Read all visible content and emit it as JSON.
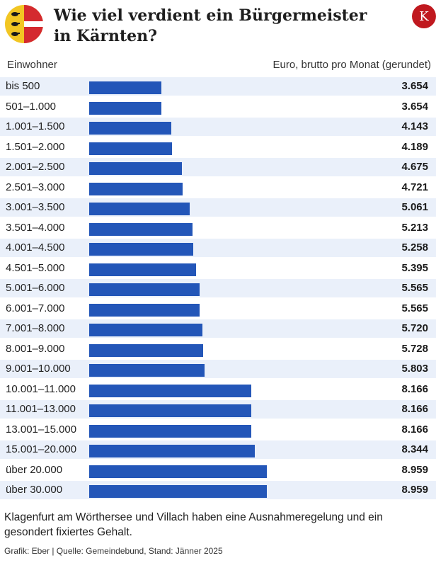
{
  "header": {
    "title_line1": "Wie viel verdient ein Bürgermeister",
    "title_line2": "in Kärnten?",
    "logo_letter": "K",
    "crest_icon": "carinthia-coat-of-arms-icon",
    "colors": {
      "yellow": "#f2c623",
      "red": "#d42a2f",
      "white": "#ffffff",
      "brand": "#c0191f"
    }
  },
  "column_headers": {
    "left": "Einwohner",
    "right": "Euro, brutto pro Monat (gerundet)"
  },
  "chart_data": {
    "type": "bar",
    "orientation": "horizontal",
    "title": "Wie viel verdient ein Bürgermeister in Kärnten?",
    "xlabel": "Euro, brutto pro Monat (gerundet)",
    "ylabel": "Einwohner",
    "xlim": [
      0,
      10500
    ],
    "grid": false,
    "bar_color": "#2356b8",
    "categories": [
      "bis 500",
      "501–1.000",
      "1.001–1.500",
      "1.501–2.000",
      "2.001–2.500",
      "2.501–3.000",
      "3.001–3.500",
      "3.501–4.000",
      "4.001–4.500",
      "4.501–5.000",
      "5.001–6.000",
      "6.001–7.000",
      "7.001–8.000",
      "8.001–9.000",
      "9.001–10.000",
      "10.001–11.000",
      "11.001–13.000",
      "13.001–15.000",
      "15.001–20.000",
      "über 20.000",
      "über 30.000"
    ],
    "values": [
      3654,
      3654,
      4143,
      4189,
      4675,
      4721,
      5061,
      5213,
      5258,
      5395,
      5565,
      5565,
      5720,
      5728,
      5803,
      8166,
      8166,
      8166,
      8344,
      8959,
      8959
    ],
    "value_labels": [
      "3.654",
      "3.654",
      "4.143",
      "4.189",
      "4.675",
      "4.721",
      "5.061",
      "5.213",
      "5.258",
      "5.395",
      "5.565",
      "5.565",
      "5.720",
      "5.728",
      "5.803",
      "8.166",
      "8.166",
      "8.166",
      "8.344",
      "8.959",
      "8.959"
    ]
  },
  "footer": {
    "note": "Klagenfurt am Wörthersee und Villach haben eine Ausnahmeregelung und ein gesondert fixiertes Gehalt.",
    "source": "Grafik: Eber | Quelle: Gemeindebund, Stand: Jänner 2025"
  }
}
